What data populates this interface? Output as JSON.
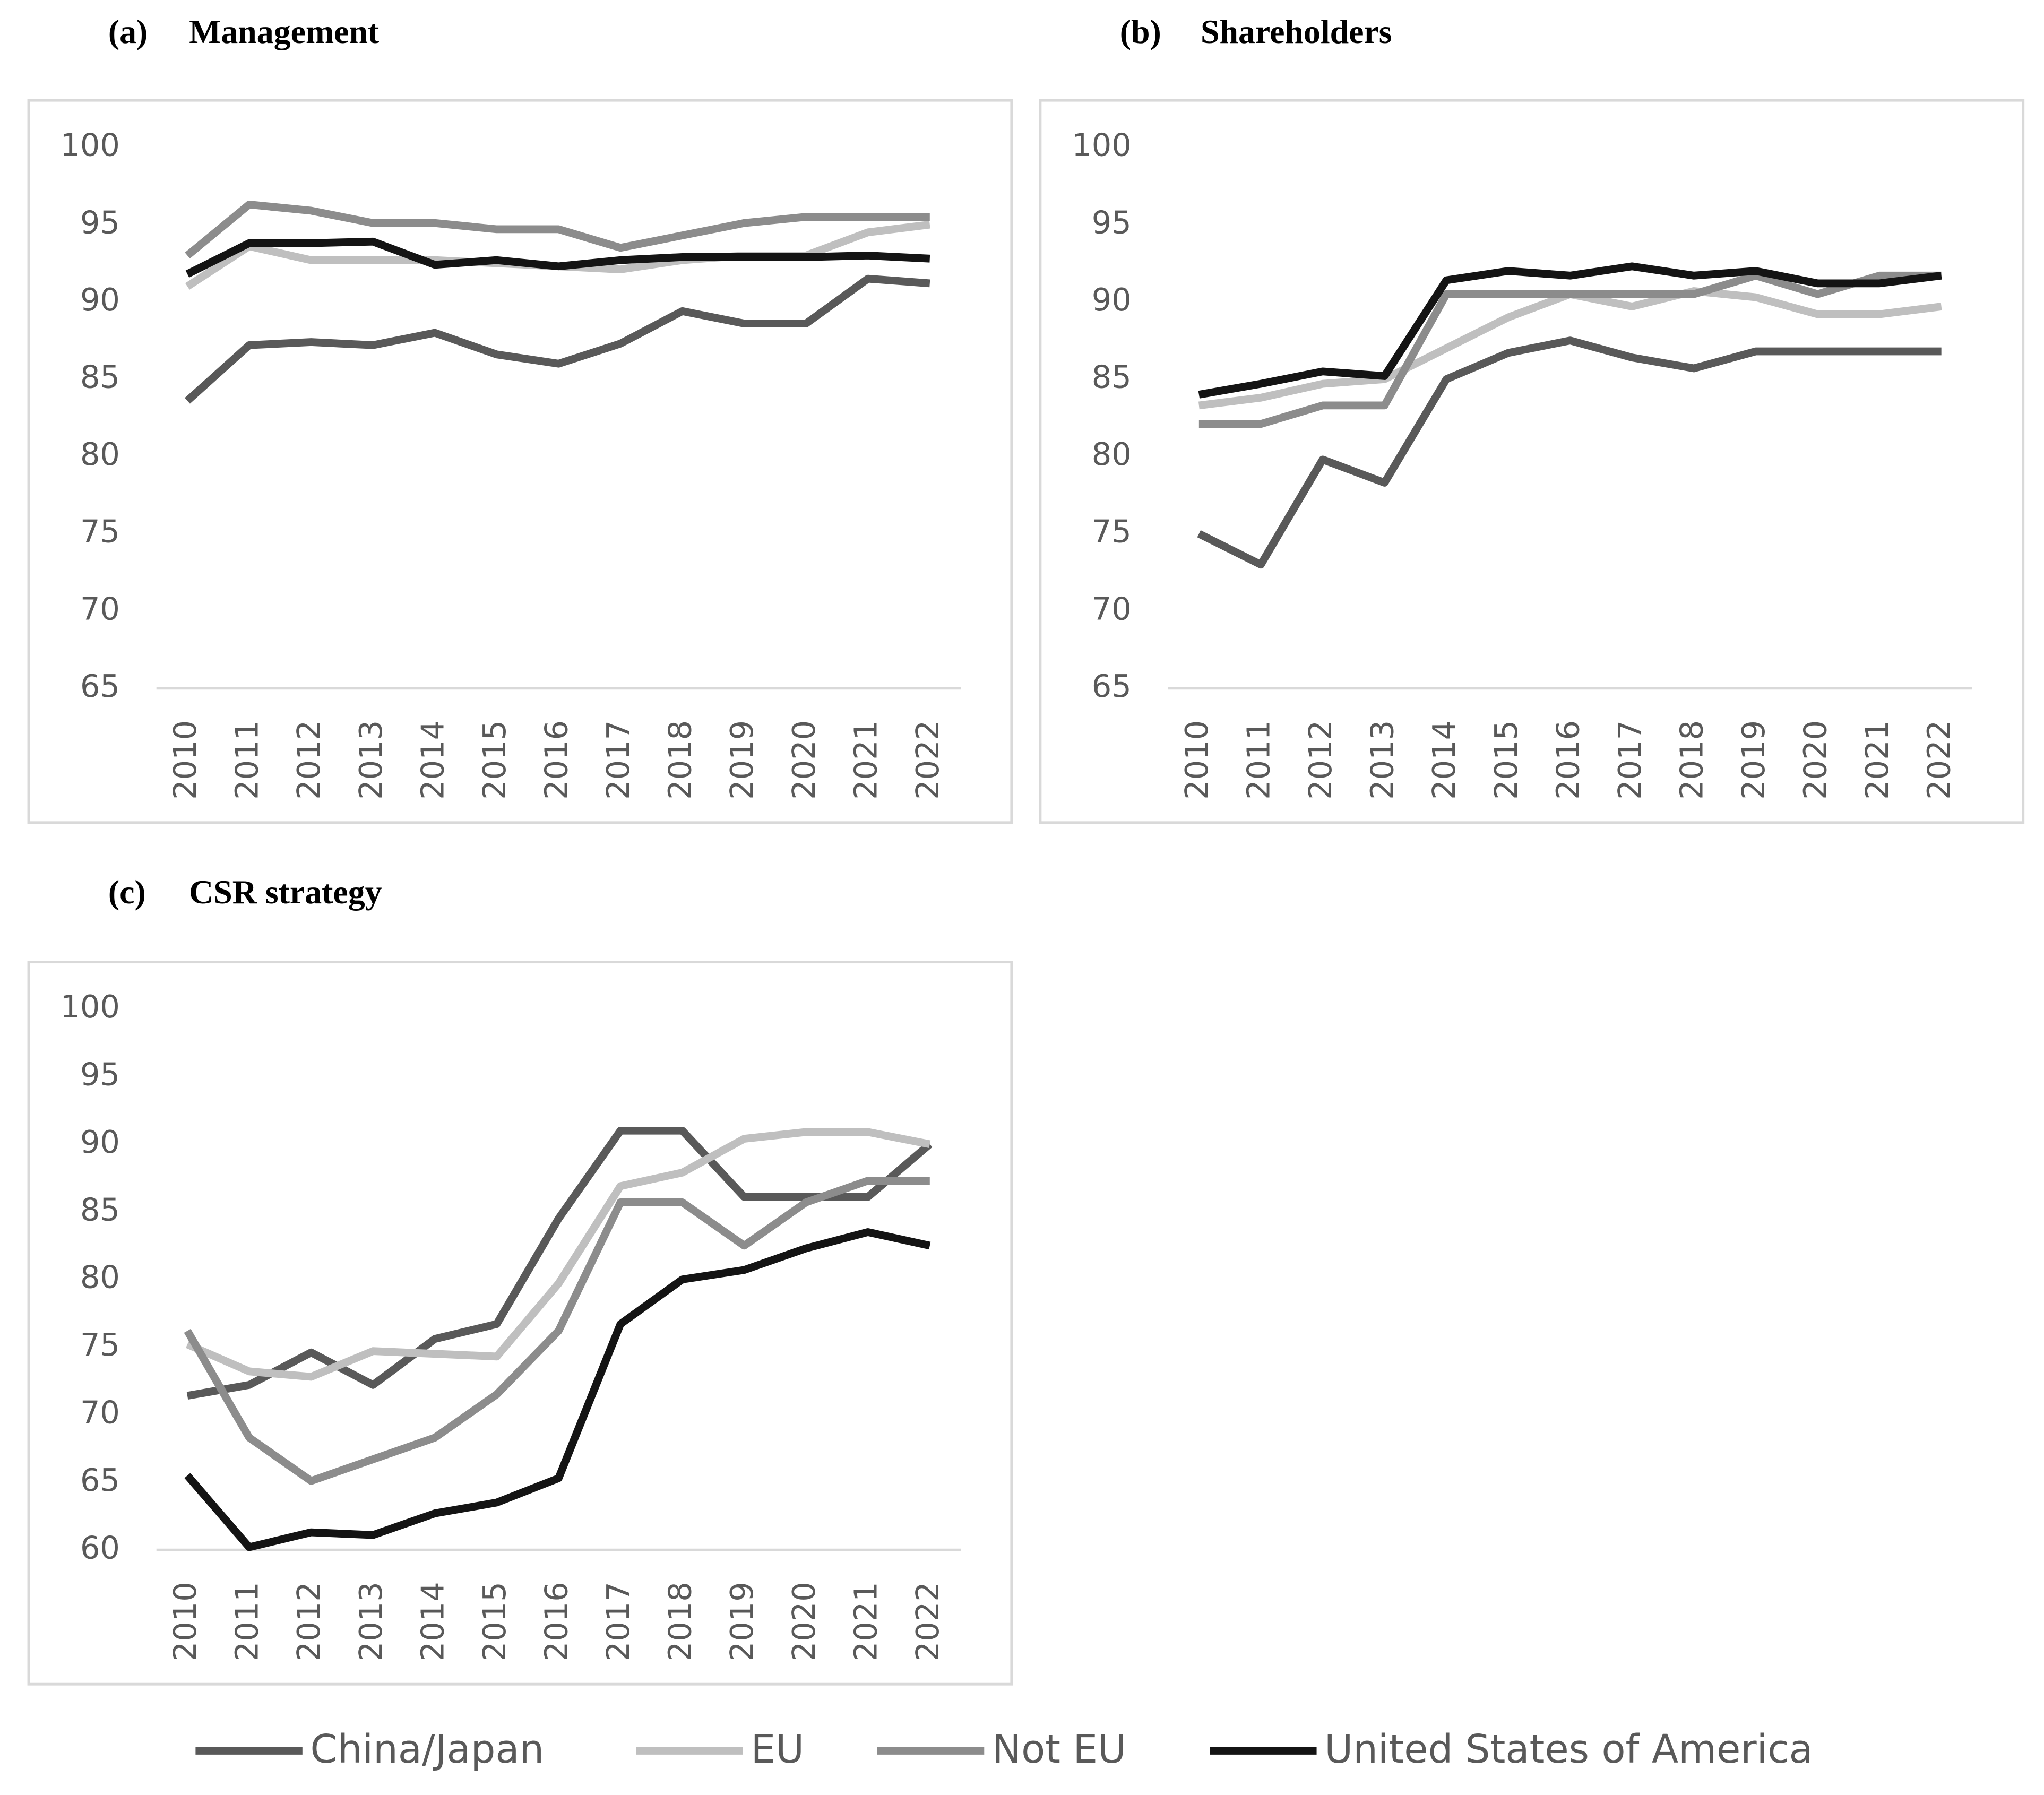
{
  "chart_data": [
    {
      "type": "line",
      "label": "(a)",
      "title": "Management",
      "categories": [
        "2010",
        "2011",
        "2012",
        "2013",
        "2014",
        "2015",
        "2016",
        "2017",
        "2018",
        "2019",
        "2020",
        "2021",
        "2022"
      ],
      "ylim": [
        65,
        100
      ],
      "yticks": [
        65,
        70,
        75,
        80,
        85,
        90,
        95,
        100
      ],
      "series": [
        {
          "values": [
            83.6,
            87.2,
            87.4,
            87.2,
            88.0,
            86.6,
            86.0,
            87.3,
            89.4,
            88.6,
            88.6,
            91.5,
            91.2
          ]
        },
        {
          "values": [
            91.0,
            93.6,
            92.7,
            92.7,
            92.7,
            92.5,
            92.3,
            92.1,
            92.7,
            93.0,
            93.0,
            94.5,
            95.0
          ]
        },
        {
          "values": [
            93.0,
            96.3,
            95.9,
            95.1,
            95.1,
            94.7,
            94.7,
            93.5,
            94.3,
            95.1,
            95.5,
            95.5,
            95.5
          ]
        },
        {
          "values": [
            91.8,
            93.8,
            93.8,
            93.9,
            92.4,
            92.7,
            92.3,
            92.7,
            92.9,
            92.9,
            92.9,
            93.0,
            92.8
          ]
        }
      ]
    },
    {
      "type": "line",
      "label": "(b)",
      "title": "Shareholders",
      "categories": [
        "2010",
        "2011",
        "2012",
        "2013",
        "2014",
        "2015",
        "2016",
        "2017",
        "2018",
        "2019",
        "2020",
        "2021",
        "2022"
      ],
      "ylim": [
        65,
        100
      ],
      "yticks": [
        65,
        70,
        75,
        80,
        85,
        90,
        95,
        100
      ],
      "series": [
        {
          "values": [
            75.0,
            73.0,
            79.8,
            78.3,
            85.0,
            86.7,
            87.5,
            86.4,
            85.7,
            86.8,
            86.8,
            86.8,
            86.8
          ]
        },
        {
          "values": [
            83.3,
            83.8,
            84.7,
            85.0,
            87.0,
            89.0,
            90.5,
            89.7,
            90.7,
            90.3,
            89.2,
            89.2,
            89.7
          ]
        },
        {
          "values": [
            82.1,
            82.1,
            83.3,
            83.3,
            90.5,
            90.5,
            90.5,
            90.5,
            90.5,
            91.7,
            90.5,
            91.7,
            91.7
          ]
        },
        {
          "values": [
            84.0,
            84.7,
            85.5,
            85.2,
            91.4,
            92.0,
            91.7,
            92.3,
            91.7,
            92.0,
            91.2,
            91.2,
            91.7
          ]
        }
      ]
    },
    {
      "type": "line",
      "label": "(c)",
      "title": "CSR strategy",
      "categories": [
        "2010",
        "2011",
        "2012",
        "2013",
        "2014",
        "2015",
        "2016",
        "2017",
        "2018",
        "2019",
        "2020",
        "2021",
        "2022"
      ],
      "ylim": [
        60,
        100
      ],
      "yticks": [
        60,
        65,
        70,
        75,
        80,
        85,
        90,
        95,
        100
      ],
      "series": [
        {
          "values": [
            71.4,
            72.2,
            74.6,
            72.2,
            75.6,
            76.7,
            84.5,
            91.0,
            91.0,
            86.1,
            86.1,
            86.1,
            90.0
          ]
        },
        {
          "values": [
            75.2,
            73.2,
            72.8,
            74.7,
            74.5,
            74.3,
            79.7,
            86.9,
            87.9,
            90.4,
            90.9,
            90.9,
            90.0
          ]
        },
        {
          "values": [
            76.2,
            68.3,
            65.1,
            66.7,
            68.3,
            71.5,
            76.2,
            85.7,
            85.7,
            82.5,
            85.7,
            87.3,
            87.3
          ]
        },
        {
          "values": [
            65.5,
            60.2,
            61.3,
            61.1,
            62.7,
            63.5,
            65.3,
            76.7,
            80.0,
            80.7,
            82.3,
            83.5,
            82.5
          ]
        }
      ]
    }
  ],
  "legend": {
    "names": [
      "China/Japan",
      "EU",
      "Not EU",
      "United States of America"
    ],
    "colors": [
      "#595959",
      "#bfbfbf",
      "#8c8c8c",
      "#141414"
    ]
  }
}
